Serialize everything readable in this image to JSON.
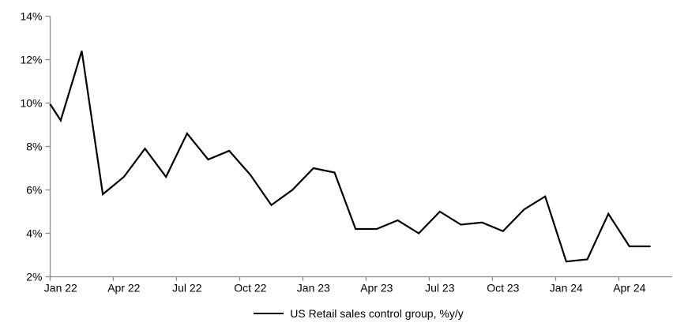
{
  "chart_data": {
    "type": "line",
    "title": "",
    "x": [
      "Jan 22",
      "Feb 22",
      "Mar 22",
      "Apr 22",
      "May 22",
      "Jun 22",
      "Jul 22",
      "Aug 22",
      "Sep 22",
      "Oct 22",
      "Nov 22",
      "Dec 22",
      "Jan 23",
      "Feb 23",
      "Mar 23",
      "Apr 23",
      "May 23",
      "Jun 23",
      "Jul 23",
      "Aug 23",
      "Sep 23",
      "Oct 23",
      "Nov 23",
      "Dec 23",
      "Jan 24",
      "Feb 24",
      "Mar 24",
      "Apr 24",
      "May 24"
    ],
    "series": [
      {
        "name": "US Retail sales control group, %y/y",
        "color": "#000000",
        "left_edge_entry_value": 9.95,
        "values": [
          9.2,
          12.4,
          5.8,
          6.6,
          7.9,
          6.6,
          8.6,
          7.4,
          7.8,
          6.7,
          5.3,
          6.0,
          7.0,
          6.8,
          4.2,
          4.2,
          4.6,
          4.0,
          5.0,
          4.4,
          4.5,
          4.1,
          5.1,
          5.7,
          2.7,
          2.8,
          4.9,
          3.4,
          3.4
        ]
      }
    ],
    "ylim": [
      2,
      14
    ],
    "ytick_labels": [
      "2%",
      "4%",
      "6%",
      "8%",
      "10%",
      "12%",
      "14%"
    ],
    "xtick_labels": [
      "Jan 22",
      "Apr 22",
      "Jul 22",
      "Oct 22",
      "Jan 23",
      "Apr 23",
      "Jul 23",
      "Oct 23",
      "Jan 24",
      "Apr 24"
    ],
    "grid": false,
    "legend": {
      "position": "bottom",
      "label": "US Retail sales control group, %y/y"
    },
    "axis_color": "#8c8c8c",
    "text_color": "#000000",
    "background": "#ffffff"
  }
}
